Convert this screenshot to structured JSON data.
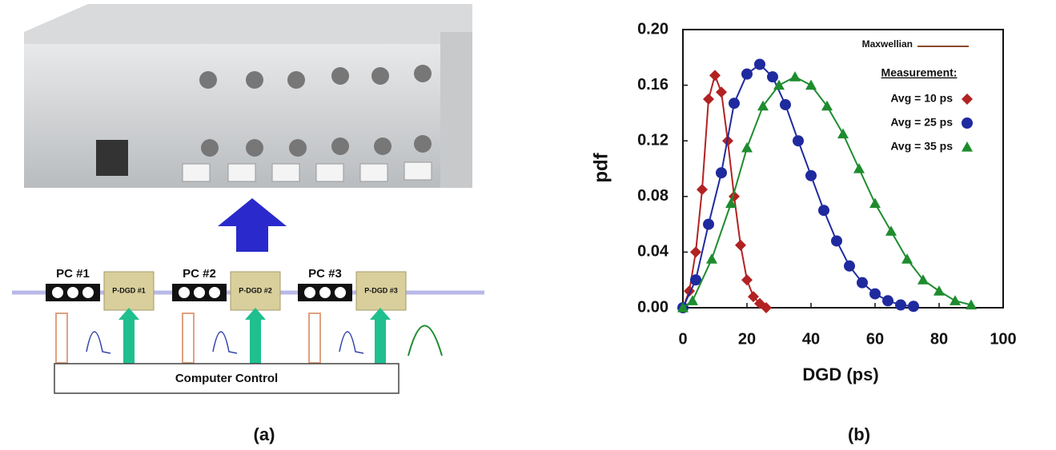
{
  "figure": {
    "panel_a": {
      "pc_labels": [
        "PC #1",
        "PC #2",
        "PC #3"
      ],
      "dgd_labels": [
        "P-DGD #1",
        "P-DGD #2",
        "P-DGD #3"
      ],
      "control": "Computer Control",
      "caption": "(a)"
    },
    "panel_b_caption": "(b)"
  },
  "chart_data": {
    "type": "line",
    "xlabel": "DGD (ps)",
    "ylabel": "pdf",
    "xlim": [
      0,
      100
    ],
    "xticks": [
      0,
      20,
      40,
      60,
      80,
      100
    ],
    "ylim": [
      0,
      0.2
    ],
    "yticks": [
      {
        "value": 0,
        "label": "0.00"
      },
      {
        "value": 0.04,
        "label": "0.04"
      },
      {
        "value": 0.08,
        "label": "0.08"
      },
      {
        "value": 0.12,
        "label": "0.12"
      },
      {
        "value": 0.16,
        "label": "0.16"
      },
      {
        "value": 0.2,
        "label": "0.20"
      }
    ],
    "fit_label": "Maxwellian",
    "fit_color": "#8b4a2b",
    "legend_title": "Measurement:",
    "series": [
      {
        "name": "Avg = 10 ps",
        "color": "#b22222",
        "marker": "diamond",
        "x": [
          0,
          2,
          4,
          6,
          8,
          10,
          12,
          14,
          16,
          18,
          20,
          22,
          24,
          26
        ],
        "values": [
          0,
          0.012,
          0.04,
          0.085,
          0.15,
          0.167,
          0.155,
          0.12,
          0.08,
          0.045,
          0.02,
          0.008,
          0.003,
          0
        ]
      },
      {
        "name": "Avg = 25 ps",
        "color": "#1f2a9e",
        "marker": "circle",
        "x": [
          0,
          4,
          8,
          12,
          16,
          20,
          24,
          28,
          32,
          36,
          40,
          44,
          48,
          52,
          56,
          60,
          64,
          68,
          72
        ],
        "values": [
          0,
          0.02,
          0.06,
          0.097,
          0.147,
          0.168,
          0.175,
          0.166,
          0.146,
          0.12,
          0.095,
          0.07,
          0.048,
          0.03,
          0.018,
          0.01,
          0.005,
          0.002,
          0.001
        ]
      },
      {
        "name": "Avg = 35 ps",
        "color": "#1e8c2e",
        "marker": "triangle",
        "x": [
          0,
          3,
          9,
          15,
          20,
          25,
          30,
          35,
          40,
          45,
          50,
          55,
          60,
          65,
          70,
          75,
          80,
          85,
          90
        ],
        "values": [
          0,
          0.005,
          0.035,
          0.075,
          0.115,
          0.145,
          0.16,
          0.166,
          0.16,
          0.145,
          0.125,
          0.1,
          0.075,
          0.055,
          0.035,
          0.02,
          0.012,
          0.005,
          0.002
        ]
      }
    ]
  }
}
